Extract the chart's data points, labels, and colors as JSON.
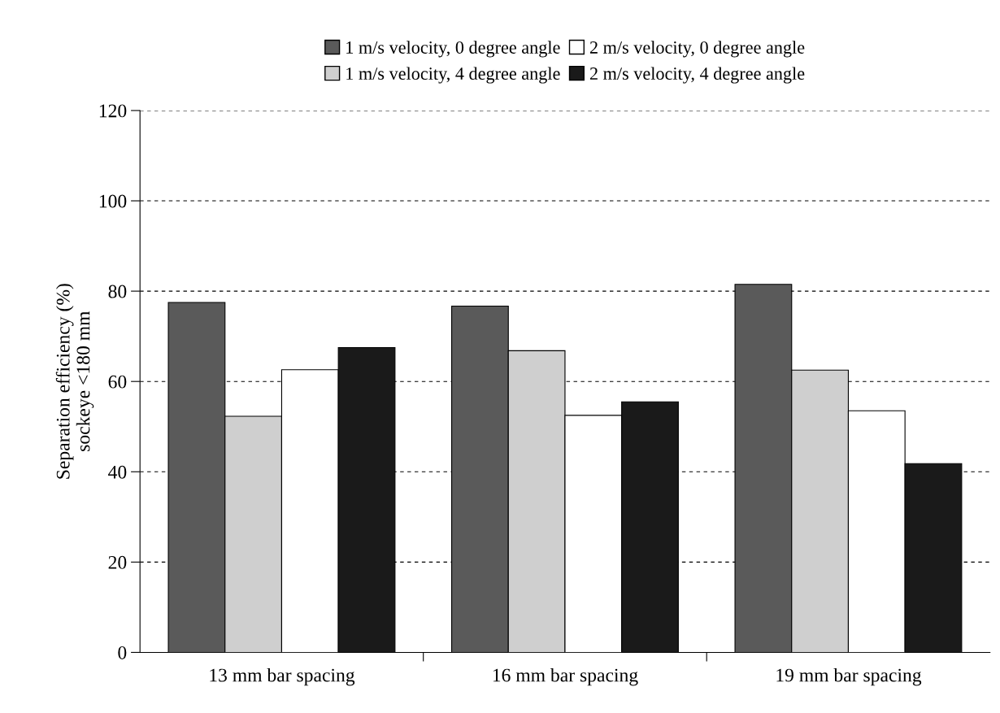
{
  "chart_data": {
    "type": "bar",
    "ylabel": "Separation efficiency (%)\nsockeye <180 mm",
    "categories": [
      "13 mm bar spacing",
      "16 mm bar spacing",
      "19 mm bar spacing"
    ],
    "series": [
      {
        "name": "1 m/s velocity, 0 degree angle",
        "color": "#5a5a5a",
        "values": [
          77.5,
          76.7,
          81.5
        ]
      },
      {
        "name": "1 m/s velocity, 4 degree angle",
        "color": "#cfcfcf",
        "values": [
          52.3,
          66.8,
          62.5
        ]
      },
      {
        "name": "2 m/s velocity, 0 degree angle",
        "color": "#ffffff",
        "values": [
          62.6,
          52.5,
          53.5
        ]
      },
      {
        "name": "2 m/s velocity, 4 degree angle",
        "color": "#1a1a1a",
        "values": [
          67.5,
          55.5,
          41.8
        ]
      }
    ],
    "ylim": [
      0,
      120
    ],
    "yticks": [
      0,
      20,
      40,
      60,
      80,
      100,
      120
    ],
    "grid": "y",
    "legend": "top"
  }
}
